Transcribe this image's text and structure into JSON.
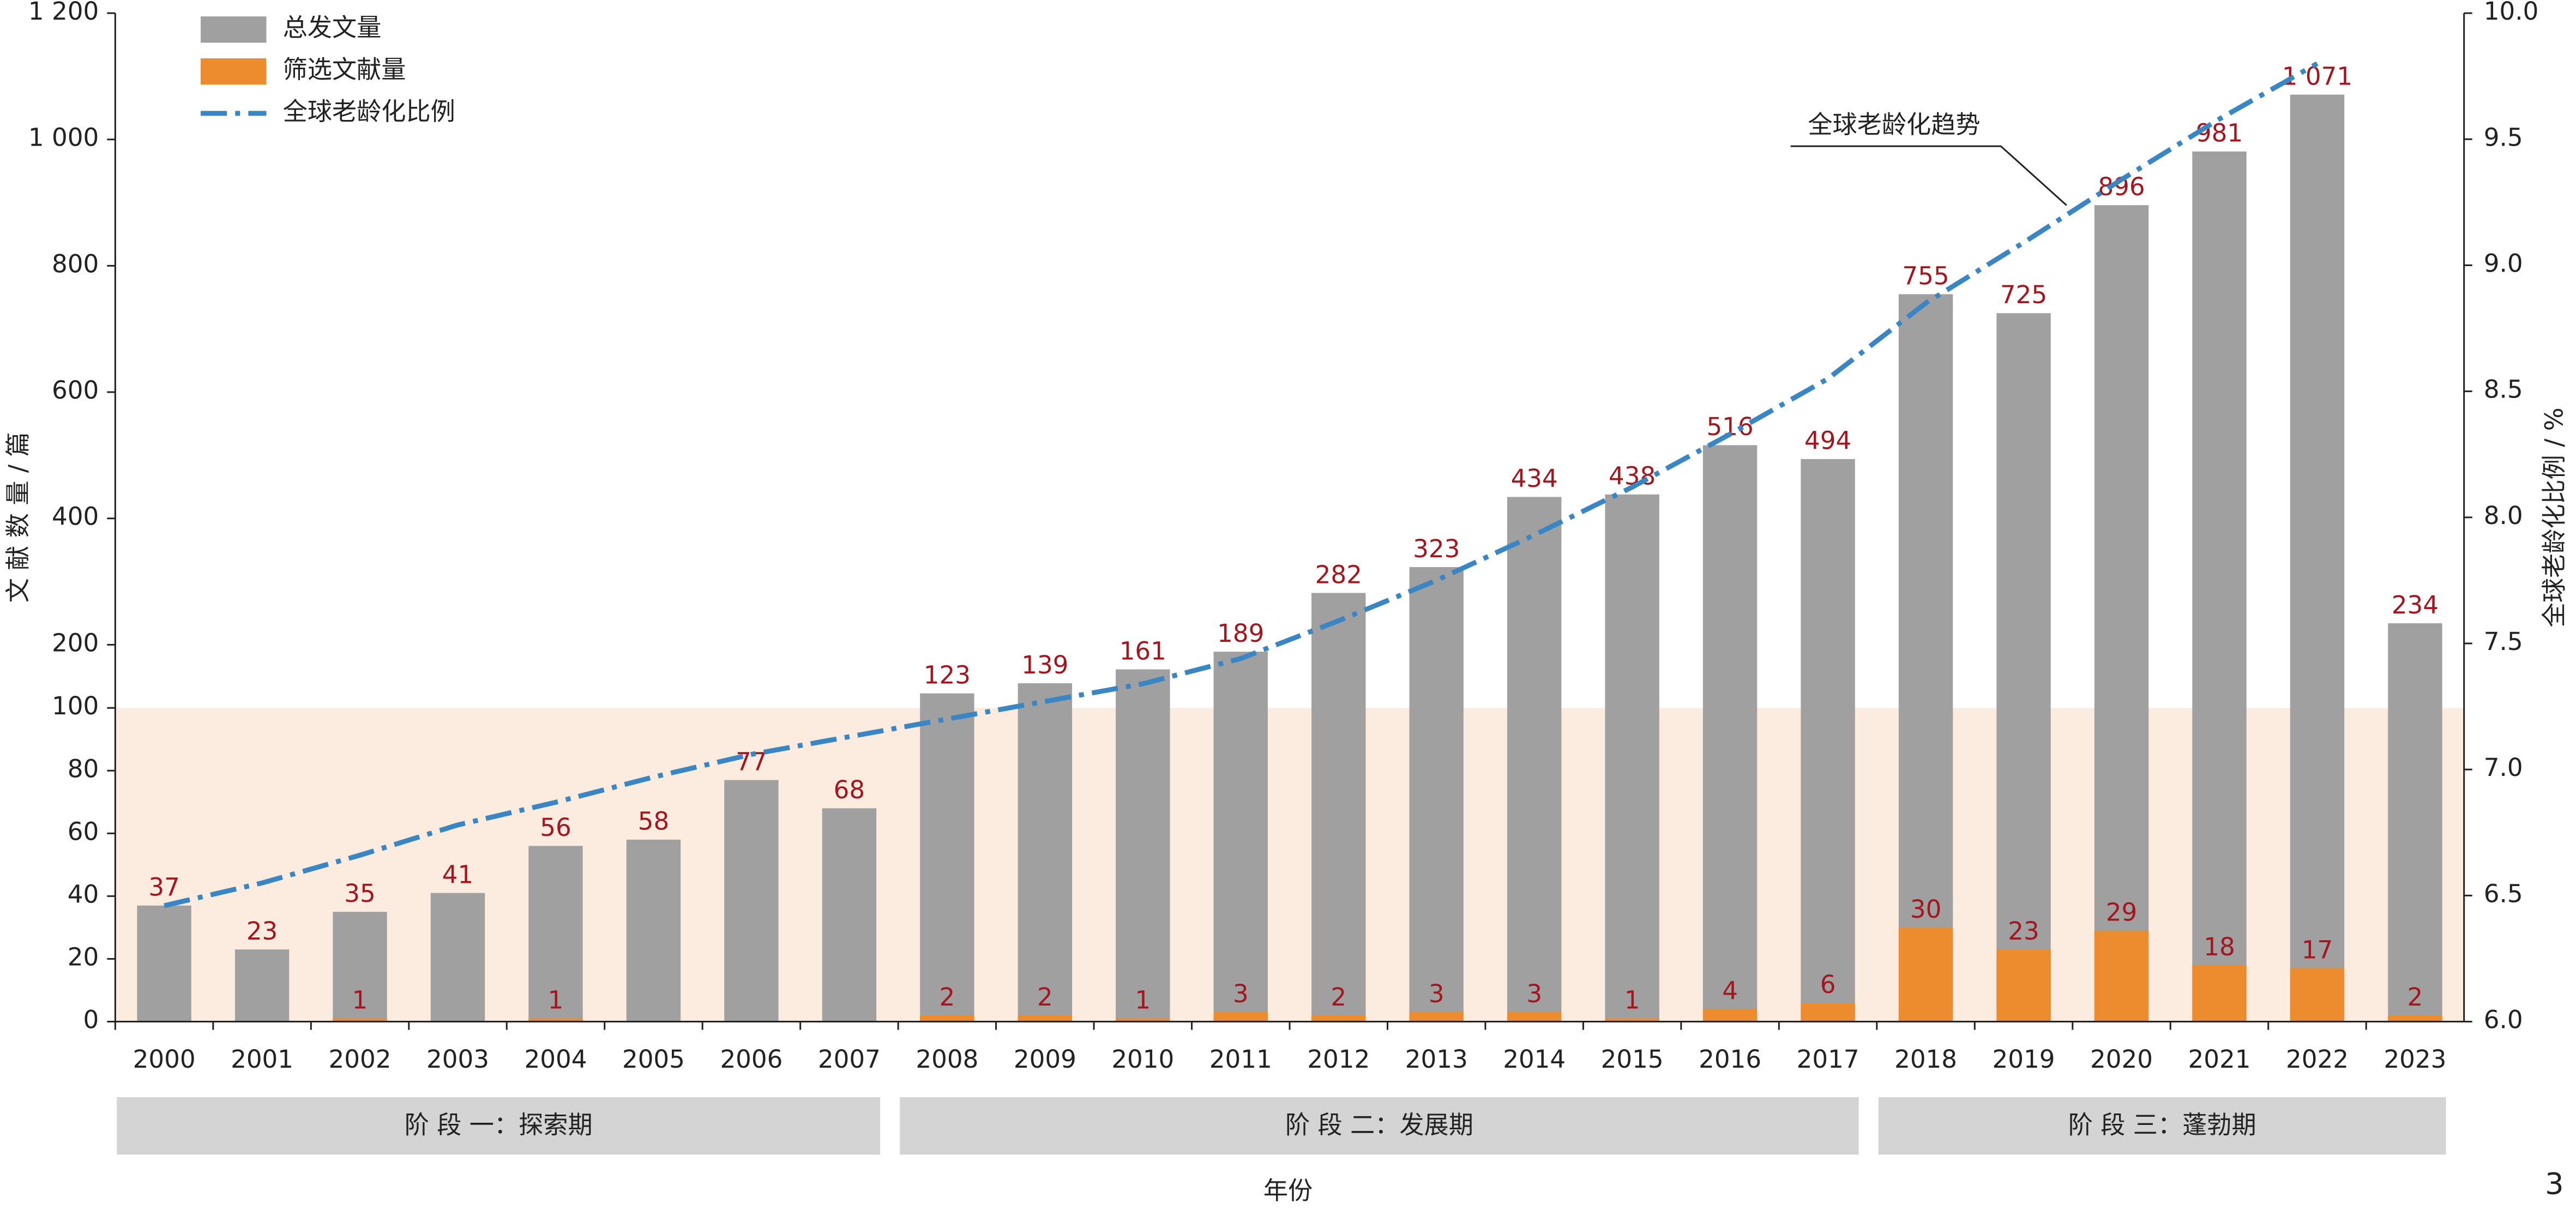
{
  "chart_data": {
    "type": "bar",
    "categories": [
      "2000",
      "2001",
      "2002",
      "2003",
      "2004",
      "2005",
      "2006",
      "2007",
      "2008",
      "2009",
      "2010",
      "2011",
      "2012",
      "2013",
      "2014",
      "2015",
      "2016",
      "2017",
      "2018",
      "2019",
      "2020",
      "2021",
      "2022",
      "2023"
    ],
    "series": [
      {
        "name": "总发文量",
        "color": "#a0a0a0",
        "values": [
          37,
          23,
          35,
          41,
          56,
          58,
          77,
          68,
          123,
          139,
          161,
          189,
          282,
          323,
          434,
          438,
          516,
          494,
          755,
          725,
          896,
          981,
          1071,
          234
        ],
        "value_labels": [
          "37",
          "23",
          "35",
          "41",
          "56",
          "58",
          "77",
          "68",
          "123",
          "139",
          "161",
          "189",
          "282",
          "323",
          "434",
          "438",
          "516",
          "494",
          "755",
          "725",
          "896",
          "981",
          "1 071",
          "234"
        ]
      },
      {
        "name": "筛选文献量",
        "color": "#ec8c2e",
        "values": [
          0,
          0,
          1,
          0,
          1,
          0,
          0,
          0,
          2,
          2,
          1,
          3,
          2,
          3,
          3,
          1,
          4,
          6,
          30,
          23,
          29,
          18,
          17,
          2
        ]
      },
      {
        "name": "全球老龄化比例",
        "color": "#3a86c4",
        "axis": "y2",
        "type": "line",
        "values": [
          6.46,
          6.55,
          6.66,
          6.78,
          6.87,
          6.97,
          7.06,
          7.13,
          7.2,
          7.27,
          7.34,
          7.44,
          7.59,
          7.75,
          7.93,
          8.12,
          8.33,
          8.55,
          8.85,
          9.09,
          9.34,
          9.58,
          9.8,
          null
        ]
      }
    ],
    "ylim": [
      0,
      1200
    ],
    "y_break": 100,
    "yticks": [
      0,
      20,
      40,
      60,
      80,
      100,
      200,
      400,
      600,
      800,
      {
        "value": 1000,
        "label": "1 000"
      },
      {
        "value": 1200,
        "label": "1 200"
      }
    ],
    "y2lim": [
      6.0,
      10.0
    ],
    "y2ticks": [
      {
        "value": 6.0,
        "label": "6.0"
      },
      {
        "value": 6.5,
        "label": "6.5"
      },
      {
        "value": 7.0,
        "label": "7.0"
      },
      {
        "value": 7.5,
        "label": "7.5"
      },
      {
        "value": 8.0,
        "label": "8.0"
      },
      {
        "value": 8.5,
        "label": "8.5"
      },
      {
        "value": 9.0,
        "label": "9.0"
      },
      {
        "value": 9.5,
        "label": "9.5"
      },
      {
        "value": 10.0,
        "label": "10.0"
      }
    ],
    "ylabel": "文 献 数 量 / 篇",
    "y2label": "全球老龄化比例 / %",
    "xlabel": "年份",
    "legend": "top-left",
    "shade_color": "#fcebdf",
    "phases": [
      {
        "label": "阶 段 一：探索期",
        "from": "2000",
        "to": "2007"
      },
      {
        "label": "阶 段 二：发展期",
        "from": "2008",
        "to": "2017"
      },
      {
        "label": "阶 段 三：蓬勃期",
        "from": "2018",
        "to": "2023"
      }
    ],
    "annotation": "全球老龄化趋势",
    "page_number": "3"
  }
}
